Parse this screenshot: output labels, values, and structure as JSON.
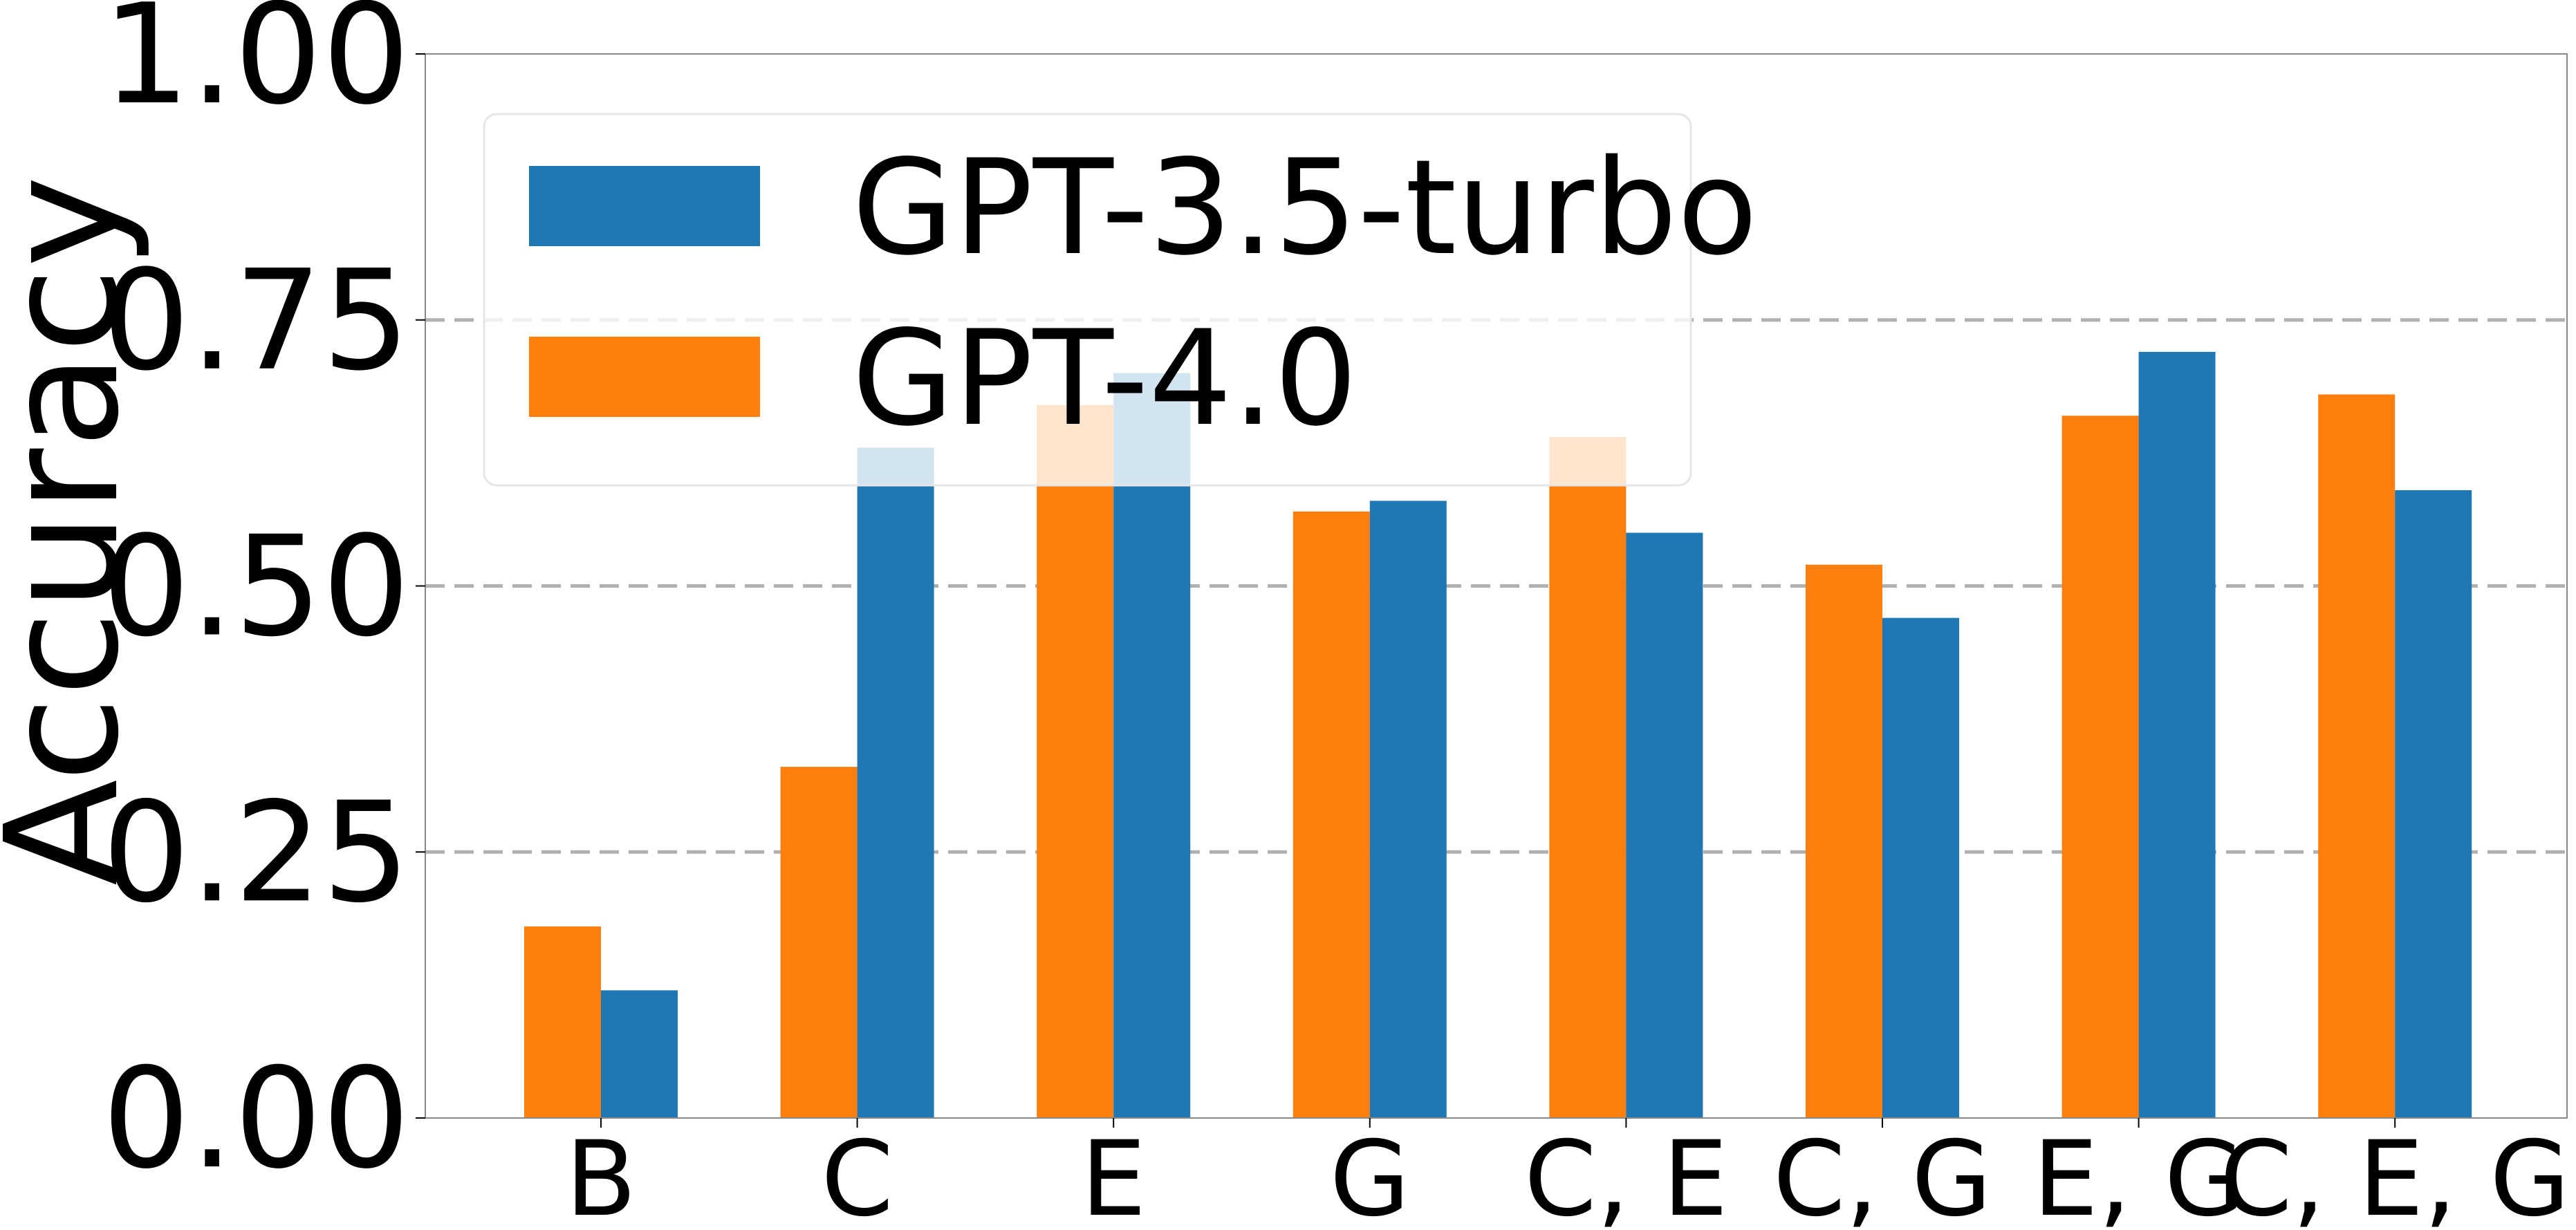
{
  "chart_data": {
    "type": "bar",
    "title": "",
    "xlabel": "",
    "ylabel": "Accuracy",
    "ylim": [
      0,
      1
    ],
    "yticks": [
      "0.00",
      "0.25",
      "0.50",
      "0.75",
      "1.00"
    ],
    "grid": "y-dashed",
    "legend_position": "top-left",
    "categories": [
      "B",
      "C",
      "E",
      "G",
      "C, E",
      "C, G",
      "E, G",
      "C, E, G"
    ],
    "series": [
      {
        "name": "GPT-4.0",
        "color": "#ff7f0e",
        "values": [
          0.18,
          0.33,
          0.67,
          0.57,
          0.64,
          0.52,
          0.66,
          0.68
        ]
      },
      {
        "name": "GPT-3.5-turbo",
        "color": "#1f77b4",
        "values": [
          0.12,
          0.63,
          0.7,
          0.58,
          0.55,
          0.47,
          0.72,
          0.59
        ]
      }
    ],
    "legend_order": [
      "GPT-3.5-turbo",
      "GPT-4.0"
    ]
  }
}
